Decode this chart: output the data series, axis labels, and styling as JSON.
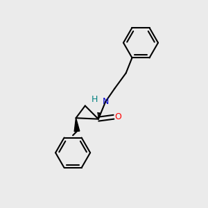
{
  "background_color": "#ebebeb",
  "line_color": "#000000",
  "bond_width": 1.5,
  "N_color": "#0000cd",
  "H_color": "#008080",
  "O_color": "#ff0000",
  "figsize": [
    3.0,
    3.0
  ],
  "dpi": 100,
  "xlim": [
    0,
    10
  ],
  "ylim": [
    0,
    10
  ]
}
